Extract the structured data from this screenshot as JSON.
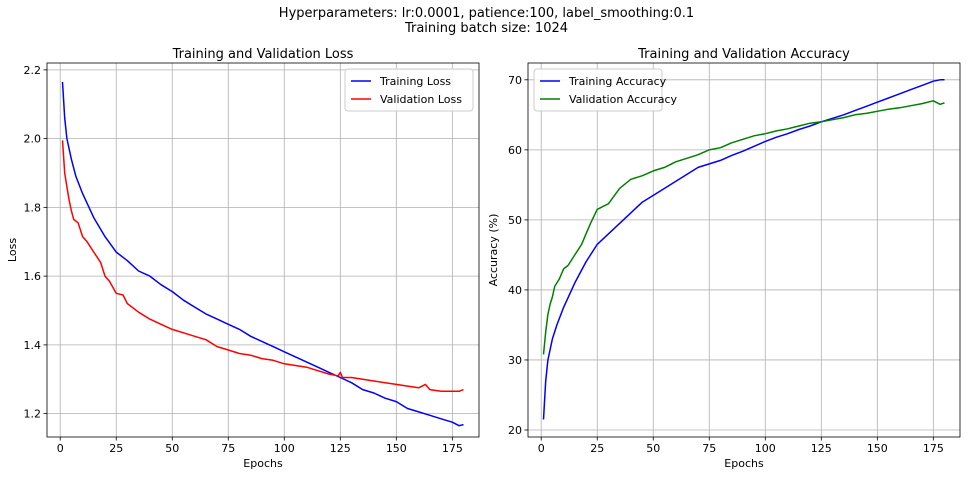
{
  "figure": {
    "suptitle_line1": "Hyperparameters: lr:0.0001, patience:100, label_smoothing:0.1",
    "suptitle_line2": "Training batch size: 1024"
  },
  "chart_data": [
    {
      "type": "line",
      "title": "Training and Validation Loss",
      "xlabel": "Epochs",
      "ylabel": "Loss",
      "xlim": [
        -5.9,
        186.9
      ],
      "ylim": [
        1.132,
        2.22
      ],
      "xticks": [
        0,
        25,
        50,
        75,
        100,
        125,
        150,
        175
      ],
      "yticks": [
        1.2,
        1.4,
        1.6,
        1.8,
        2.0,
        2.2
      ],
      "ytick_labels": [
        "1.2",
        "1.4",
        "1.6",
        "1.8",
        "2.0",
        "2.2"
      ],
      "grid": true,
      "legend_position": "upper right",
      "series": [
        {
          "name": "Training Loss",
          "color": "#0000ff",
          "x": [
            1,
            2,
            3,
            5,
            7,
            10,
            15,
            20,
            25,
            30,
            35,
            40,
            45,
            50,
            55,
            60,
            65,
            70,
            75,
            80,
            85,
            90,
            95,
            100,
            105,
            110,
            115,
            120,
            125,
            130,
            135,
            140,
            145,
            150,
            155,
            160,
            165,
            170,
            175,
            178,
            180
          ],
          "values": [
            2.165,
            2.06,
            2.0,
            1.94,
            1.89,
            1.84,
            1.77,
            1.715,
            1.67,
            1.645,
            1.615,
            1.6,
            1.575,
            1.555,
            1.53,
            1.51,
            1.49,
            1.475,
            1.46,
            1.445,
            1.425,
            1.41,
            1.395,
            1.38,
            1.365,
            1.35,
            1.335,
            1.32,
            1.305,
            1.29,
            1.27,
            1.26,
            1.245,
            1.235,
            1.215,
            1.205,
            1.195,
            1.185,
            1.175,
            1.165,
            1.168
          ]
        },
        {
          "name": "Validation Loss",
          "color": "#ff0000",
          "x": [
            1,
            2,
            3,
            4,
            5,
            6,
            8,
            10,
            12,
            15,
            18,
            20,
            22,
            25,
            28,
            30,
            35,
            40,
            45,
            50,
            55,
            60,
            65,
            70,
            75,
            80,
            85,
            90,
            95,
            100,
            105,
            110,
            115,
            120,
            124,
            125,
            126,
            130,
            135,
            140,
            145,
            150,
            155,
            160,
            163,
            165,
            170,
            175,
            178,
            180
          ],
          "values": [
            1.995,
            1.9,
            1.86,
            1.82,
            1.79,
            1.765,
            1.755,
            1.715,
            1.7,
            1.67,
            1.64,
            1.6,
            1.585,
            1.55,
            1.545,
            1.52,
            1.495,
            1.475,
            1.46,
            1.445,
            1.435,
            1.425,
            1.415,
            1.395,
            1.385,
            1.375,
            1.37,
            1.36,
            1.355,
            1.345,
            1.34,
            1.335,
            1.325,
            1.315,
            1.31,
            1.32,
            1.305,
            1.305,
            1.3,
            1.295,
            1.29,
            1.285,
            1.28,
            1.275,
            1.285,
            1.27,
            1.265,
            1.265,
            1.265,
            1.27
          ]
        }
      ]
    },
    {
      "type": "line",
      "title": "Training and Validation Accuracy",
      "xlabel": "Epochs",
      "ylabel": "Accuracy (%)",
      "xlim": [
        -5.9,
        186.9
      ],
      "ylim": [
        19.0,
        72.4
      ],
      "xticks": [
        0,
        25,
        50,
        75,
        100,
        125,
        150,
        175
      ],
      "yticks": [
        20,
        30,
        40,
        50,
        60,
        70
      ],
      "ytick_labels": [
        "20",
        "30",
        "40",
        "50",
        "60",
        "70"
      ],
      "grid": true,
      "legend_position": "upper left",
      "series": [
        {
          "name": "Training Accuracy",
          "color": "#0000ff",
          "x": [
            1,
            2,
            3,
            5,
            7,
            10,
            15,
            20,
            25,
            30,
            35,
            40,
            45,
            50,
            55,
            60,
            65,
            70,
            75,
            80,
            85,
            90,
            95,
            100,
            105,
            110,
            115,
            120,
            125,
            130,
            135,
            140,
            145,
            150,
            155,
            160,
            165,
            170,
            175,
            178,
            180
          ],
          "values": [
            21.5,
            27,
            30,
            33,
            35,
            37.5,
            41,
            44,
            46.5,
            48,
            49.5,
            51,
            52.5,
            53.5,
            54.5,
            55.5,
            56.5,
            57.5,
            58,
            58.5,
            59.2,
            59.8,
            60.5,
            61.2,
            61.8,
            62.3,
            62.9,
            63.4,
            64,
            64.5,
            65,
            65.6,
            66.2,
            66.8,
            67.4,
            68,
            68.6,
            69.2,
            69.8,
            70,
            70
          ]
        },
        {
          "name": "Validation Accuracy",
          "color": "#008000",
          "x": [
            1,
            2,
            3,
            4,
            5,
            6,
            8,
            10,
            12,
            15,
            18,
            20,
            22,
            25,
            28,
            30,
            35,
            40,
            45,
            50,
            55,
            60,
            65,
            70,
            75,
            80,
            85,
            90,
            95,
            100,
            105,
            110,
            115,
            120,
            125,
            130,
            135,
            140,
            145,
            150,
            155,
            160,
            165,
            170,
            175,
            178,
            180
          ],
          "values": [
            30.8,
            34,
            36.5,
            38,
            39,
            40.5,
            41.5,
            43,
            43.5,
            45,
            46.5,
            48,
            49.5,
            51.5,
            52,
            52.3,
            54.5,
            55.8,
            56.3,
            57,
            57.5,
            58.3,
            58.8,
            59.3,
            60,
            60.3,
            61,
            61.5,
            62,
            62.3,
            62.7,
            63,
            63.4,
            63.8,
            64,
            64.3,
            64.6,
            65,
            65.2,
            65.5,
            65.8,
            66,
            66.3,
            66.6,
            67,
            66.5,
            66.7
          ]
        }
      ]
    }
  ]
}
